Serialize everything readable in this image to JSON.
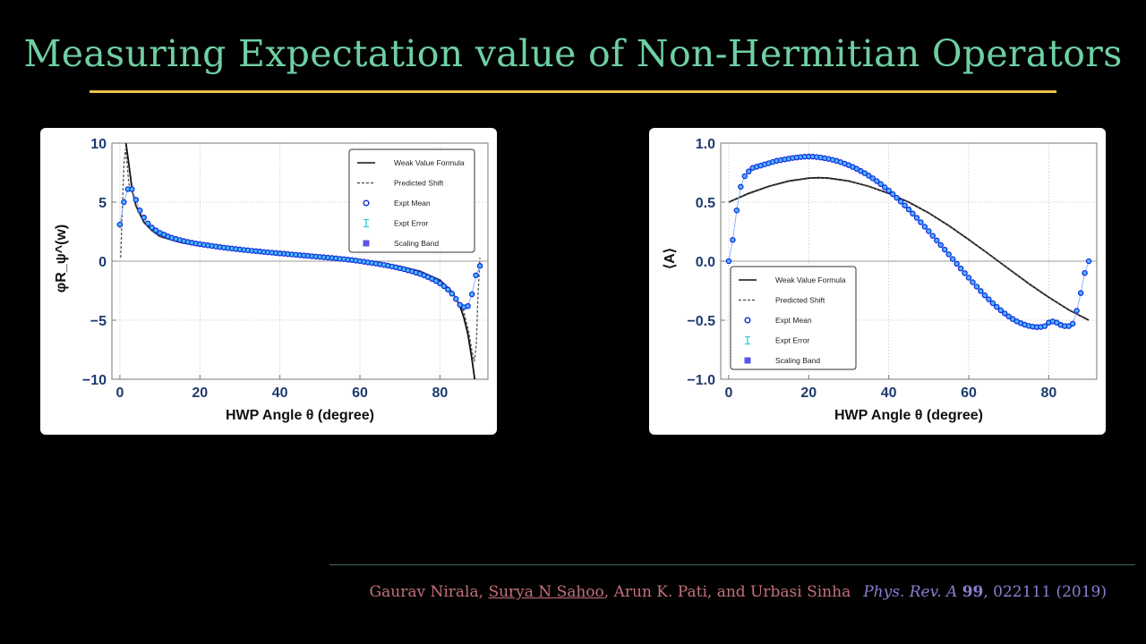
{
  "slide": {
    "title": "Measuring Expectation value of Non-Hermitian Operators",
    "citation": {
      "author_1": "Gaurav Nirala, ",
      "author_2": "Surya N Sahoo",
      "authors_rest": ", Arun K. Pati, and Urbasi Sinha",
      "journal": "Phys. Rev. A",
      "volume": "99",
      "pages_year": ", 022111 (2019)"
    },
    "colors": {
      "title": "#6fcfa3",
      "rule": "#e8c34a",
      "citation": "#c4707c",
      "journal": "#8a7fd0"
    }
  },
  "chart_data": [
    {
      "type": "scatter",
      "xlabel": "HWP Angle θ  (degree)",
      "ylabel": "φR_ψ^(w)",
      "xlim": [
        -2,
        92
      ],
      "ylim": [
        -10,
        10
      ],
      "xticks": [
        0,
        20,
        40,
        60,
        80
      ],
      "yticks": [
        -10,
        -5,
        0,
        5,
        10
      ],
      "ytick_labels": [
        "−10",
        "−5",
        "0",
        "5",
        "10"
      ],
      "grid": true,
      "legend_position": "top-right",
      "legend": [
        "Weak Value Formula",
        "Predicted Shift",
        "Expt Mean",
        "Expt Error",
        "Scaling Band"
      ],
      "series": [
        {
          "name": "Weak Value Formula",
          "style": "solid",
          "x": [
            1.5,
            2,
            3,
            4,
            6,
            8,
            10,
            15,
            20,
            25,
            30,
            35,
            40,
            45,
            50,
            55,
            60,
            65,
            70,
            75,
            80,
            83,
            85,
            86,
            87,
            88,
            88.7
          ],
          "y": [
            10.0,
            8.8,
            6.2,
            4.7,
            3.3,
            2.6,
            2.1,
            1.6,
            1.3,
            1.1,
            0.9,
            0.75,
            0.6,
            0.5,
            0.38,
            0.25,
            0.08,
            -0.15,
            -0.45,
            -0.85,
            -1.6,
            -2.6,
            -3.8,
            -4.8,
            -6.2,
            -8.3,
            -10.0
          ]
        },
        {
          "name": "Predicted Shift",
          "style": "dashed",
          "x": [
            0.2,
            0.6,
            1,
            1.4,
            1.8,
            2.2,
            3,
            4,
            6,
            8,
            10,
            15,
            20,
            25,
            30,
            35,
            40,
            45,
            50,
            55,
            60,
            65,
            70,
            75,
            80,
            84,
            86,
            87.2,
            88,
            88.6,
            89.1,
            89.5,
            90
          ],
          "y": [
            0.3,
            4.5,
            8.2,
            9.5,
            8.3,
            6.6,
            5.9,
            4.8,
            3.4,
            2.6,
            2.1,
            1.6,
            1.3,
            1.1,
            0.9,
            0.75,
            0.6,
            0.5,
            0.38,
            0.25,
            0.08,
            -0.15,
            -0.45,
            -0.85,
            -1.6,
            -3.0,
            -4.3,
            -6.0,
            -7.6,
            -8.5,
            -7.0,
            -3.0,
            0.3
          ]
        },
        {
          "name": "Expt Mean",
          "style": "markers",
          "x": [
            0,
            1,
            2,
            3,
            4,
            5,
            6,
            7,
            8,
            9,
            10,
            11,
            12,
            13,
            14,
            15,
            16,
            17,
            18,
            19,
            20,
            21,
            22,
            23,
            24,
            25,
            26,
            27,
            28,
            29,
            30,
            31,
            32,
            33,
            34,
            35,
            36,
            37,
            38,
            39,
            40,
            41,
            42,
            43,
            44,
            45,
            46,
            47,
            48,
            49,
            50,
            51,
            52,
            53,
            54,
            55,
            56,
            57,
            58,
            59,
            60,
            61,
            62,
            63,
            64,
            65,
            66,
            67,
            68,
            69,
            70,
            71,
            72,
            73,
            74,
            75,
            76,
            77,
            78,
            79,
            80,
            81,
            82,
            83,
            84,
            85,
            86,
            87,
            88,
            89,
            90
          ],
          "y": [
            3.1,
            5.0,
            6.1,
            6.1,
            5.2,
            4.3,
            3.7,
            3.2,
            2.85,
            2.6,
            2.4,
            2.25,
            2.1,
            1.98,
            1.88,
            1.79,
            1.7,
            1.63,
            1.56,
            1.5,
            1.44,
            1.39,
            1.34,
            1.29,
            1.24,
            1.2,
            1.15,
            1.11,
            1.07,
            1.03,
            0.99,
            0.95,
            0.92,
            0.88,
            0.85,
            0.82,
            0.78,
            0.75,
            0.72,
            0.69,
            0.66,
            0.63,
            0.6,
            0.57,
            0.54,
            0.51,
            0.48,
            0.45,
            0.42,
            0.39,
            0.36,
            0.33,
            0.3,
            0.27,
            0.24,
            0.2,
            0.17,
            0.13,
            0.09,
            0.05,
            0.0,
            -0.05,
            -0.1,
            -0.15,
            -0.2,
            -0.26,
            -0.32,
            -0.38,
            -0.45,
            -0.52,
            -0.6,
            -0.68,
            -0.77,
            -0.86,
            -0.97,
            -1.08,
            -1.2,
            -1.34,
            -1.5,
            -1.68,
            -1.88,
            -2.12,
            -2.4,
            -2.75,
            -3.2,
            -3.7,
            -3.9,
            -3.8,
            -2.8,
            -1.2,
            -0.4
          ]
        }
      ]
    },
    {
      "type": "scatter",
      "xlabel": "HWP Angle θ  (degree)",
      "ylabel": "⟨A⟩",
      "xlim": [
        -2,
        92
      ],
      "ylim": [
        -1.0,
        1.0
      ],
      "xticks": [
        0,
        20,
        40,
        60,
        80
      ],
      "yticks": [
        -1.0,
        -0.5,
        0.0,
        0.5,
        1.0
      ],
      "ytick_labels": [
        "−1.0",
        "−0.5",
        "0.0",
        "0.5",
        "1.0"
      ],
      "grid": true,
      "legend_position": "bottom-left",
      "legend": [
        "Weak Value Formula",
        "Predicted Shift",
        "Expt Mean",
        "Expt Error",
        "Scaling Band"
      ],
      "series": [
        {
          "name": "Weak Value Formula",
          "style": "solid",
          "x": [
            0,
            5,
            10,
            15,
            20,
            22.5,
            25,
            30,
            35,
            40,
            45,
            50,
            55,
            60,
            65,
            70,
            75,
            80,
            85,
            90
          ],
          "y": [
            0.5,
            0.574,
            0.634,
            0.679,
            0.703,
            0.707,
            0.703,
            0.679,
            0.634,
            0.574,
            0.5,
            0.408,
            0.301,
            0.183,
            0.06,
            -0.066,
            -0.19,
            -0.306,
            -0.412,
            -0.5
          ]
        },
        {
          "name": "Predicted Shift",
          "style": "dashed",
          "x": [
            0,
            5,
            10,
            15,
            20,
            22.5,
            25,
            30,
            35,
            40,
            45,
            50,
            55,
            60,
            65,
            70,
            75,
            80,
            85,
            90
          ],
          "y": [
            0.5,
            0.57,
            0.63,
            0.675,
            0.7,
            0.705,
            0.7,
            0.676,
            0.632,
            0.572,
            0.498,
            0.406,
            0.299,
            0.181,
            0.058,
            -0.068,
            -0.192,
            -0.308,
            -0.41,
            -0.495
          ]
        },
        {
          "name": "Expt Mean",
          "style": "markers",
          "x": [
            0,
            1,
            2,
            3,
            4,
            5,
            6,
            7,
            8,
            9,
            10,
            11,
            12,
            13,
            14,
            15,
            16,
            17,
            18,
            19,
            20,
            21,
            22,
            23,
            24,
            25,
            26,
            27,
            28,
            29,
            30,
            31,
            32,
            33,
            34,
            35,
            36,
            37,
            38,
            39,
            40,
            41,
            42,
            43,
            44,
            45,
            46,
            47,
            48,
            49,
            50,
            51,
            52,
            53,
            54,
            55,
            56,
            57,
            58,
            59,
            60,
            61,
            62,
            63,
            64,
            65,
            66,
            67,
            68,
            69,
            70,
            71,
            72,
            73,
            74,
            75,
            76,
            77,
            78,
            79,
            80,
            81,
            82,
            83,
            84,
            85,
            86,
            87,
            88,
            89,
            90
          ],
          "y": [
            0.0,
            0.18,
            0.43,
            0.63,
            0.72,
            0.76,
            0.79,
            0.8,
            0.81,
            0.82,
            0.83,
            0.84,
            0.85,
            0.856,
            0.862,
            0.868,
            0.874,
            0.878,
            0.882,
            0.885,
            0.886,
            0.885,
            0.882,
            0.878,
            0.872,
            0.866,
            0.858,
            0.849,
            0.838,
            0.826,
            0.813,
            0.798,
            0.782,
            0.764,
            0.745,
            0.724,
            0.702,
            0.678,
            0.653,
            0.626,
            0.598,
            0.568,
            0.537,
            0.505,
            0.472,
            0.438,
            0.403,
            0.367,
            0.33,
            0.292,
            0.254,
            0.215,
            0.176,
            0.137,
            0.098,
            0.058,
            0.018,
            -0.022,
            -0.062,
            -0.101,
            -0.14,
            -0.178,
            -0.216,
            -0.253,
            -0.289,
            -0.323,
            -0.356,
            -0.387,
            -0.416,
            -0.443,
            -0.468,
            -0.49,
            -0.509,
            -0.525,
            -0.538,
            -0.548,
            -0.555,
            -0.558,
            -0.557,
            -0.55,
            -0.52,
            -0.51,
            -0.52,
            -0.54,
            -0.55,
            -0.55,
            -0.53,
            -0.42,
            -0.27,
            -0.1,
            0.0
          ]
        }
      ]
    }
  ]
}
